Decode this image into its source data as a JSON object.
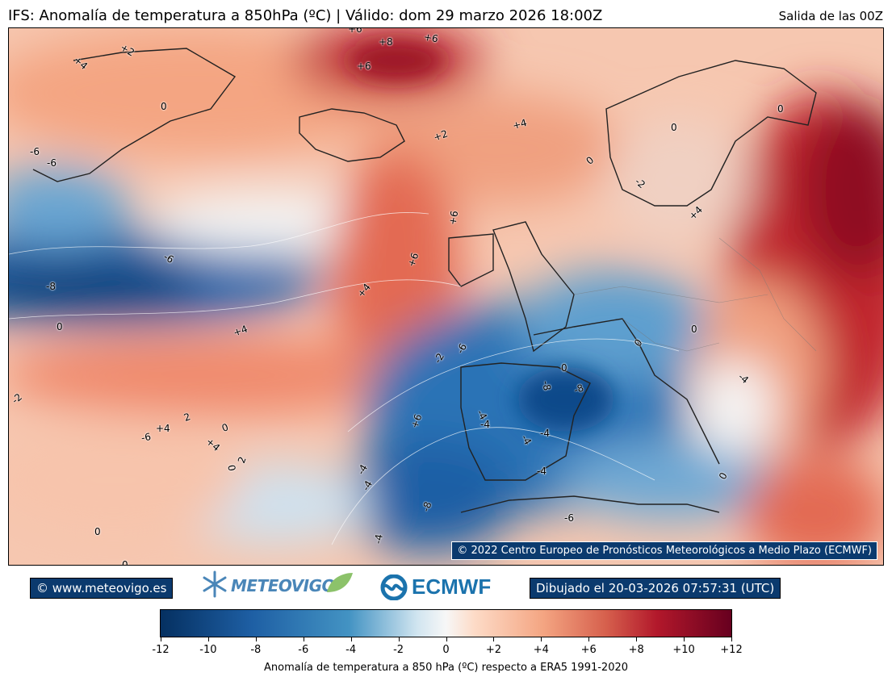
{
  "header": {
    "title": "IFS: Anomalía de temperatura a 850hPa  (ºC) | Válido: dom 29 marzo 2026 18:00Z",
    "run": "Salida de las 00Z"
  },
  "map": {
    "copyright": "© 2022 Centro Europeo de Pronósticos Meteorológicos a Medio Plazo (ECMWF)",
    "contour_labels": [
      {
        "text": "+2"
      },
      {
        "text": "+4"
      },
      {
        "text": "+8"
      },
      {
        "text": "+6"
      },
      {
        "text": "+6"
      },
      {
        "text": "+6"
      },
      {
        "text": "0"
      },
      {
        "text": "-6"
      },
      {
        "text": "-6"
      },
      {
        "text": "+2"
      },
      {
        "text": "+4"
      },
      {
        "text": "0"
      },
      {
        "text": "0"
      },
      {
        "text": "0"
      },
      {
        "text": "-2"
      },
      {
        "text": "+4"
      },
      {
        "text": "+6"
      },
      {
        "text": "-6"
      },
      {
        "text": "+6"
      },
      {
        "text": "-8"
      },
      {
        "text": "+4"
      },
      {
        "text": "0"
      },
      {
        "text": "+4"
      },
      {
        "text": "0"
      },
      {
        "text": "-2"
      },
      {
        "text": "-6"
      },
      {
        "text": "0"
      },
      {
        "text": "0"
      },
      {
        "text": "-8"
      },
      {
        "text": "-8"
      },
      {
        "text": "-4"
      },
      {
        "text": "-2"
      },
      {
        "text": "+6"
      },
      {
        "text": "-4"
      },
      {
        "text": "-4"
      },
      {
        "text": "-6"
      },
      {
        "text": "+4"
      },
      {
        "text": "2"
      },
      {
        "text": "0"
      },
      {
        "text": "+4"
      },
      {
        "text": "0"
      },
      {
        "text": "-4"
      },
      {
        "text": "-4"
      },
      {
        "text": "2"
      },
      {
        "text": "0"
      },
      {
        "text": "-4"
      },
      {
        "text": "-4"
      },
      {
        "text": "-4"
      },
      {
        "text": "-8"
      },
      {
        "text": "-6"
      },
      {
        "text": "0"
      },
      {
        "text": "0"
      },
      {
        "text": "-4"
      }
    ]
  },
  "footer": {
    "website": "© www.meteovigo.es",
    "meteovigo_logo": "METEOVIGO",
    "ecmwf_logo": "ECMWF",
    "drawn": "Dibujado el 20-03-2026 07:57:31 (UTC)"
  },
  "colorbar": {
    "ticks": [
      "-12",
      "-10",
      "-8",
      "-6",
      "-4",
      "-2",
      "0",
      "+2",
      "+4",
      "+6",
      "+8",
      "+10",
      "+12"
    ],
    "label": "Anomalía de temperatura a 850 hPa (ºC) respecto a ERA5 1991-2020",
    "colors": [
      "#053061",
      "#1e5fa4",
      "#4393c3",
      "#d1e5f0",
      "#f7f7f7",
      "#fddbc7",
      "#f4a582",
      "#d6604d",
      "#b2182b",
      "#67001f"
    ]
  }
}
